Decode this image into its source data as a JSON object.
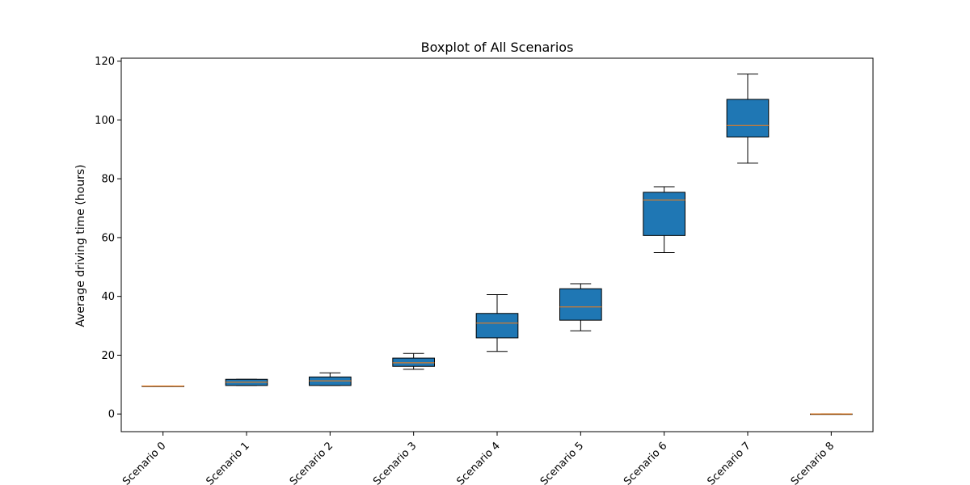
{
  "chart_data": {
    "type": "box",
    "title": "Boxplot of All Scenarios",
    "xlabel": "",
    "ylabel": "Average driving time (hours)",
    "ylim": [
      -6,
      121
    ],
    "yticks": [
      0,
      20,
      40,
      60,
      80,
      100,
      120
    ],
    "grid": false,
    "categories": [
      "Scenario 0",
      "Scenario 1",
      "Scenario 2",
      "Scenario 3",
      "Scenario 4",
      "Scenario 5",
      "Scenario 6",
      "Scenario 7",
      "Scenario 8"
    ],
    "boxes": [
      {
        "min": 9.5,
        "q1": 9.5,
        "median": 9.5,
        "q3": 9.5,
        "max": 9.5
      },
      {
        "min": 9.7,
        "q1": 9.7,
        "median": 10.8,
        "q3": 11.8,
        "max": 11.8
      },
      {
        "min": 9.7,
        "q1": 9.7,
        "median": 11.3,
        "q3": 12.6,
        "max": 14.0
      },
      {
        "min": 15.2,
        "q1": 16.2,
        "median": 17.4,
        "q3": 19.0,
        "max": 20.6
      },
      {
        "min": 21.3,
        "q1": 25.9,
        "median": 30.9,
        "q3": 34.2,
        "max": 40.6
      },
      {
        "min": 28.3,
        "q1": 31.9,
        "median": 36.4,
        "q3": 42.6,
        "max": 44.3
      },
      {
        "min": 54.9,
        "q1": 60.7,
        "median": 72.8,
        "q3": 75.4,
        "max": 77.3
      },
      {
        "min": 85.3,
        "q1": 94.2,
        "median": 98.1,
        "q3": 107.0,
        "max": 115.6
      },
      {
        "min": 0.0,
        "q1": 0.0,
        "median": 0.0,
        "q3": 0.0,
        "max": 0.0
      }
    ],
    "box_color": "#1f77b4",
    "median_color": "#ff7f0e",
    "edge_color": "#000000"
  }
}
